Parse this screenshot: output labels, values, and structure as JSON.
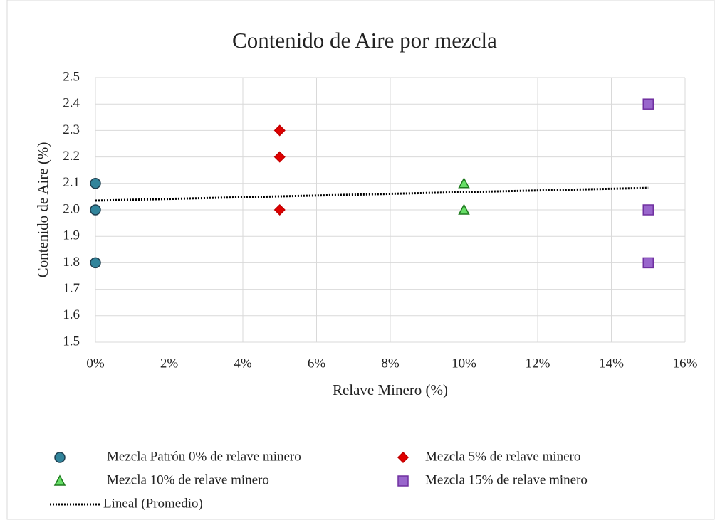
{
  "chart_data": {
    "type": "scatter",
    "title": "Contenido de Aire por mezcla",
    "x_label": "Relave Minero (%)",
    "y_label": "Contenido de Aire (%)",
    "xlim": [
      0,
      16
    ],
    "ylim": [
      1.5,
      2.5
    ],
    "xticks": [
      {
        "value": 0,
        "label": "0%"
      },
      {
        "value": 2,
        "label": "2%"
      },
      {
        "value": 4,
        "label": "4%"
      },
      {
        "value": 6,
        "label": "6%"
      },
      {
        "value": 8,
        "label": "8%"
      },
      {
        "value": 10,
        "label": "10%"
      },
      {
        "value": 12,
        "label": "12%"
      },
      {
        "value": 14,
        "label": "14%"
      },
      {
        "value": 16,
        "label": "16%"
      }
    ],
    "yticks": [
      1.5,
      1.6,
      1.7,
      1.8,
      1.9,
      {
        "value": 2,
        "label": "2.0"
      },
      2.1,
      2.2,
      2.3,
      2.4,
      2.5
    ],
    "grid": true,
    "legend": "bottom",
    "series": [
      {
        "name": "Mezcla Patrón 0% de relave minero",
        "marker": "circle",
        "color": "#31849b",
        "edge": "#1f3f4f",
        "x": [
          0,
          0,
          0
        ],
        "values": [
          2.1,
          2.0,
          1.8
        ]
      },
      {
        "name": "Mezcla 5% de relave minero",
        "marker": "diamond",
        "color": "#e00000",
        "edge": "#c00000",
        "x": [
          5,
          5,
          5
        ],
        "values": [
          2.3,
          2.2,
          2.0
        ]
      },
      {
        "name": "Mezcla 10% de relave minero",
        "marker": "triangle",
        "color": "#66dd66",
        "edge": "#1e7a1e",
        "x": [
          10,
          10
        ],
        "values": [
          2.1,
          2.0
        ]
      },
      {
        "name": "Mezcla 15% de relave minero",
        "marker": "square",
        "color": "#9966cc",
        "edge": "#7030a0",
        "x": [
          15,
          15,
          15
        ],
        "values": [
          2.4,
          2.0,
          1.8
        ]
      },
      {
        "name": "Lineal (Promedio)",
        "marker": "dotted-line",
        "color": "#000000",
        "x": [
          0,
          15
        ],
        "values": [
          2.035,
          2.083
        ]
      }
    ]
  }
}
